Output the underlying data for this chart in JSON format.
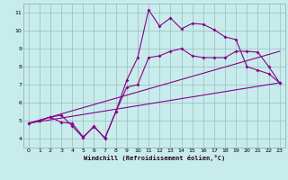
{
  "xlabel": "Windchill (Refroidissement éolien,°C)",
  "background_color": "#c8ecec",
  "line_color": "#880088",
  "grid_color": "#99bbbb",
  "xlim": [
    -0.5,
    23.5
  ],
  "ylim": [
    3.5,
    11.5
  ],
  "xticks": [
    0,
    1,
    2,
    3,
    4,
    5,
    6,
    7,
    8,
    9,
    10,
    11,
    12,
    13,
    14,
    15,
    16,
    17,
    18,
    19,
    20,
    21,
    22,
    23
  ],
  "yticks": [
    4,
    5,
    6,
    7,
    8,
    9,
    10,
    11
  ],
  "line1_x": [
    0,
    1,
    2,
    3,
    4,
    5,
    6,
    7,
    8,
    9,
    10,
    11,
    12,
    13,
    14,
    15,
    16,
    17,
    18,
    19,
    20,
    21,
    22,
    23
  ],
  "line1_y": [
    4.85,
    5.0,
    5.2,
    4.9,
    4.85,
    4.1,
    4.65,
    4.05,
    5.5,
    6.85,
    7.0,
    8.5,
    8.6,
    8.85,
    9.0,
    8.6,
    8.5,
    8.5,
    8.5,
    8.85,
    8.85,
    8.8,
    8.0,
    7.1
  ],
  "line2_x": [
    0,
    1,
    2,
    3,
    4,
    5,
    6,
    7,
    8,
    9,
    10,
    11,
    12,
    13,
    14,
    15,
    16,
    17,
    18,
    19,
    20,
    21,
    22,
    23
  ],
  "line2_y": [
    4.85,
    5.0,
    5.2,
    5.3,
    4.7,
    4.05,
    4.7,
    4.0,
    5.5,
    7.25,
    8.5,
    11.15,
    10.25,
    10.7,
    10.1,
    10.4,
    10.35,
    10.05,
    9.65,
    9.5,
    8.0,
    7.8,
    7.6,
    7.1
  ],
  "line3_x": [
    0,
    23
  ],
  "line3_y": [
    4.85,
    7.1
  ],
  "line4_x": [
    0,
    23
  ],
  "line4_y": [
    4.85,
    8.85
  ]
}
